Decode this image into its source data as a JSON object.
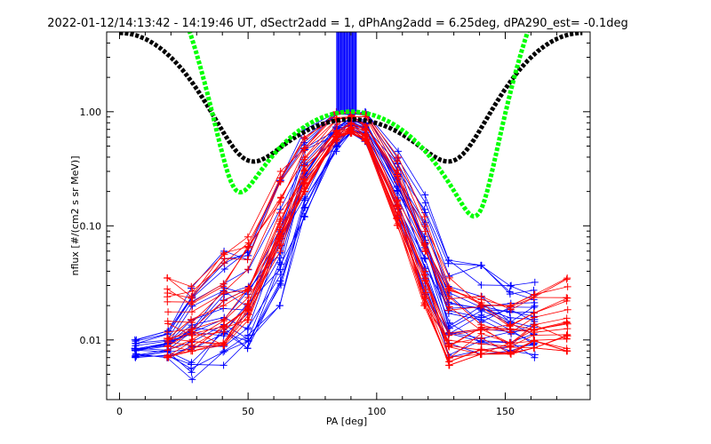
{
  "chart_data": {
    "type": "line",
    "title": "2022-01-12/14:13:42 - 14:19:46 UT, dSectr2add = 1, dPhAng2add = 6.25deg, dPA290_est=  -0.1deg",
    "xlabel": "PA [deg]",
    "ylabel": "nflux [#/(cm2 s sr MeV)]",
    "xlim": [
      -5,
      183
    ],
    "ylim": [
      0.003,
      5
    ],
    "yscale": "log",
    "grid": false,
    "x_ticks": [
      0,
      50,
      100,
      150
    ],
    "x_tick_labels": [
      "0",
      "50",
      "100",
      "150"
    ],
    "y_ticks": [
      0.01,
      0.1,
      1.0
    ],
    "y_tick_labels": [
      "0.01",
      "0.10",
      "1.00"
    ],
    "colors": {
      "blue": "#0000ff",
      "red": "#ff0000",
      "black": "#000000",
      "green": "#00ff00"
    },
    "series": [
      {
        "color": "blue",
        "style": "lines+plus",
        "x": [
          6.25,
          18.75,
          28.1,
          40.6,
          50,
          62.5,
          71.9,
          84.4,
          90,
          95.6,
          108.1,
          118.75,
          128.1,
          140.6,
          152,
          161.25
        ],
        "envelope_low": [
          0.007,
          0.007,
          0.0045,
          0.006,
          0.007,
          0.02,
          0.12,
          0.45,
          0.65,
          0.55,
          0.12,
          0.025,
          0.007,
          0.0075,
          0.008,
          0.007
        ],
        "envelope_high": [
          0.01,
          0.012,
          0.035,
          0.06,
          0.07,
          0.25,
          0.75,
          1.0,
          1.0,
          1.0,
          0.45,
          0.2,
          0.05,
          0.045,
          0.03,
          0.033
        ],
        "typical": [
          0.0075,
          0.008,
          0.01,
          0.02,
          0.03,
          0.08,
          0.35,
          0.8,
          0.9,
          0.8,
          0.25,
          0.06,
          0.015,
          0.01,
          0.012,
          0.012
        ]
      },
      {
        "color": "red",
        "style": "lines+plus",
        "x": [
          18.75,
          28.1,
          40.6,
          50,
          62.5,
          71.9,
          84.4,
          90,
          95.6,
          108.1,
          118.75,
          128.1,
          140.6,
          152,
          161.25,
          174
        ],
        "envelope_low": [
          0.007,
          0.008,
          0.009,
          0.015,
          0.06,
          0.2,
          0.55,
          0.65,
          0.55,
          0.1,
          0.02,
          0.006,
          0.0075,
          0.0075,
          0.0085,
          0.008
        ],
        "envelope_high": [
          0.035,
          0.03,
          0.06,
          0.08,
          0.3,
          0.6,
          1.0,
          1.0,
          0.95,
          0.4,
          0.12,
          0.035,
          0.025,
          0.02,
          0.025,
          0.035
        ],
        "typical": [
          0.012,
          0.012,
          0.02,
          0.04,
          0.15,
          0.4,
          0.8,
          0.9,
          0.8,
          0.2,
          0.04,
          0.012,
          0.012,
          0.012,
          0.015,
          0.015
        ]
      },
      {
        "color": "blue",
        "style": "vertical-bars",
        "x": [
          84.5,
          85,
          85.5,
          86,
          86.5,
          87,
          87.5,
          88,
          88.5,
          89,
          89.5,
          90,
          90.5,
          91,
          91.5,
          92
        ],
        "y_from": 1.0,
        "y_to": 5.0
      },
      {
        "color": "black",
        "style": "thick-dashed",
        "formula": "y = 0.85*sin(PA)^5 + 4.9*cos(PA)^8 + 0.0068",
        "x_range": [
          0,
          180
        ]
      },
      {
        "color": "green",
        "style": "thick-dashed",
        "formula": "y = 1.0*sin(PA)^6 + 32*cos(PA-3deg)^20",
        "x_range": [
          0,
          180
        ]
      }
    ]
  }
}
